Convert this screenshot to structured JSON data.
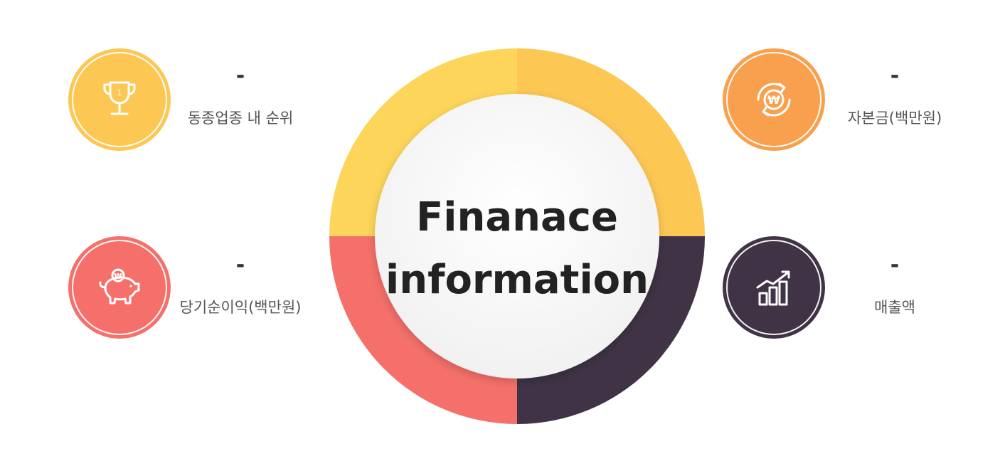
{
  "center": {
    "title_line1": "Finanace",
    "title_line2": "information"
  },
  "colors": {
    "segment_top_left": "#FDD55A",
    "segment_top_right": "#FDC754",
    "segment_bottom_right": "#3F3345",
    "segment_bottom_left": "#F5706A",
    "rank_badge": "#FDC754",
    "capital_badge": "#F8A04D",
    "profit_badge": "#F5706A",
    "sales_badge": "#3F3345"
  },
  "metrics": {
    "rank": {
      "value": "-",
      "label": "동종업종 내 순위",
      "icon": "trophy-icon"
    },
    "capital": {
      "value": "-",
      "label": "자본금(백만원)",
      "icon": "won-refresh-icon"
    },
    "net_profit": {
      "value": "-",
      "label": "당기순이익(백만원)",
      "icon": "piggy-bank-icon"
    },
    "sales": {
      "value": "-",
      "label": "매출액",
      "icon": "growth-chart-icon"
    }
  },
  "icon_text": {
    "trophy_number": "1",
    "won_symbol": "₩"
  }
}
